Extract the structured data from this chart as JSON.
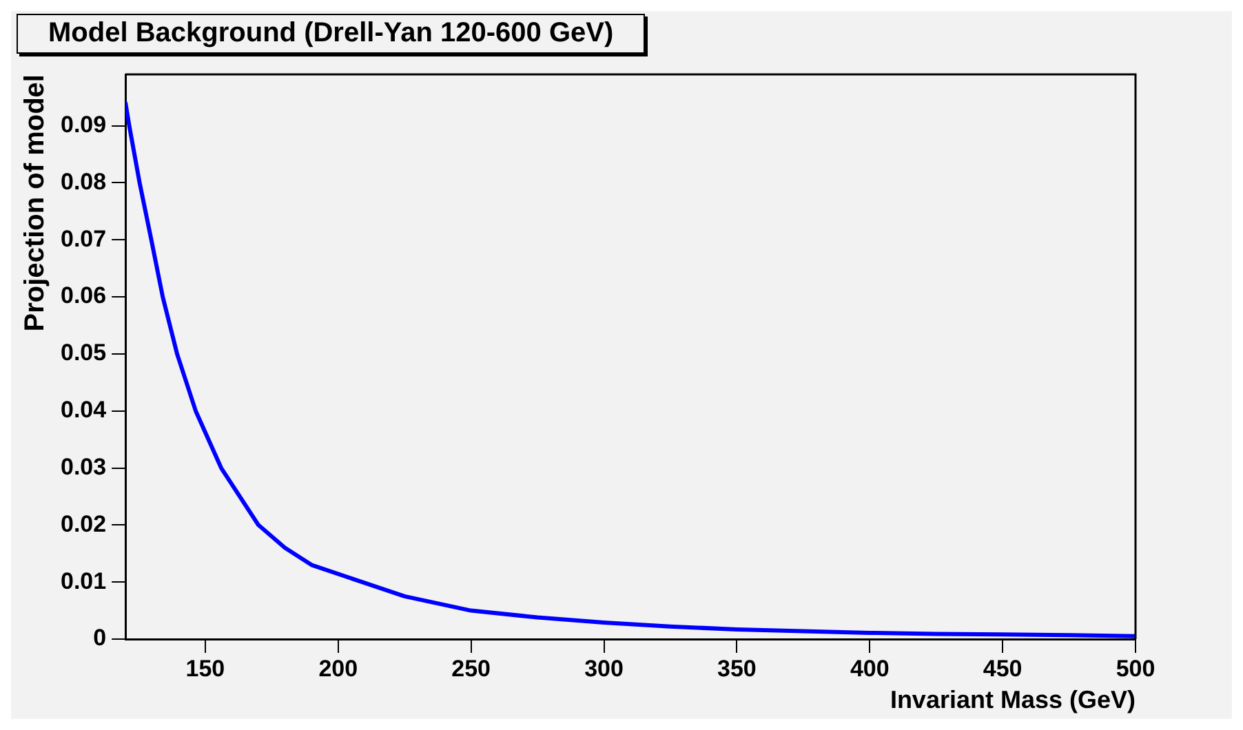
{
  "chart_data": {
    "type": "line",
    "title": "Model Background (Drell-Yan 120-600 GeV)",
    "xlabel": "Invariant Mass (GeV)",
    "ylabel": "Projection of model",
    "series": [
      {
        "color": "#0000ff",
        "x": [
          120,
          121.4,
          125.3,
          129.7,
          134,
          139.4,
          146.4,
          156,
          170,
          180,
          190,
          209,
          225,
          250,
          275,
          300,
          325,
          350,
          375,
          400,
          425,
          450,
          475,
          500
        ],
        "values": [
          0.094,
          0.09,
          0.08,
          0.07,
          0.06,
          0.05,
          0.04,
          0.03,
          0.02,
          0.016,
          0.013,
          0.01,
          0.0075,
          0.005,
          0.0038,
          0.0029,
          0.0022,
          0.0017,
          0.0014,
          0.0011,
          0.0009,
          0.0008,
          0.0007,
          0.0005
        ]
      }
    ],
    "xlim": [
      120,
      500
    ],
    "ylim": [
      0,
      0.099
    ],
    "xticks": [
      150,
      200,
      250,
      300,
      350,
      400,
      450,
      500
    ],
    "yticks": [
      0,
      0.01,
      0.02,
      0.03,
      0.04,
      0.05,
      0.06,
      0.07,
      0.08,
      0.09
    ],
    "grid": false,
    "legend": false,
    "marker": "none",
    "line_style": "solid"
  }
}
